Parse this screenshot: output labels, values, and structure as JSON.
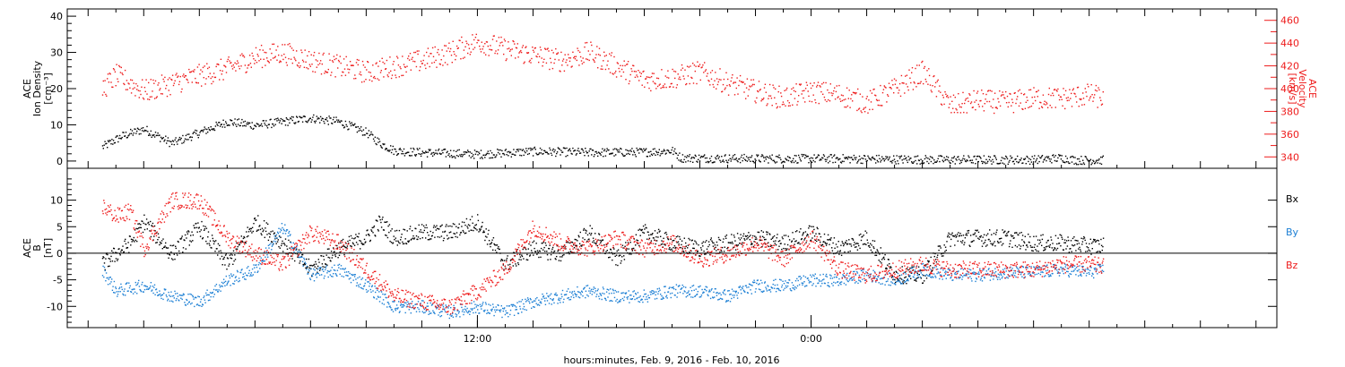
{
  "colors": {
    "black": "#000000",
    "red": "#ee1c1c",
    "blue": "#1c7fd4"
  },
  "chart_data": [
    {
      "type": "scatter",
      "panel": "top",
      "ylabel_left": [
        "ACE",
        "Ion Density",
        "[cm⁻³]"
      ],
      "ylabel_right": [
        "ACE",
        "Velocity",
        "[km/s]"
      ],
      "ylim_left": [
        -2,
        42
      ],
      "ylim_right": [
        330,
        470
      ],
      "yticks_left": [
        "0",
        "10",
        "20",
        "30",
        "40"
      ],
      "yticks_right": [
        "340",
        "360",
        "380",
        "400",
        "420",
        "440",
        "460"
      ],
      "series": [
        {
          "axis": "left",
          "color": "#000000",
          "keypoints": [
            [
              -13.5,
              4
            ],
            [
              -12.8,
              7
            ],
            [
              -12,
              9
            ],
            [
              -11,
              5
            ],
            [
              -10,
              8
            ],
            [
              -9,
              11
            ],
            [
              -8,
              10
            ],
            [
              -7,
              11
            ],
            [
              -6,
              12
            ],
            [
              -5,
              11
            ],
            [
              -4,
              8
            ],
            [
              -3.5,
              5
            ],
            [
              -3,
              3
            ],
            [
              -2,
              2.5
            ],
            [
              0,
              2
            ],
            [
              2,
              2.8
            ],
            [
              4,
              2.5
            ],
            [
              6,
              2.6
            ],
            [
              7,
              3
            ],
            [
              7.3,
              1
            ],
            [
              10,
              0.8
            ],
            [
              13,
              0.8
            ],
            [
              15,
              0.6
            ],
            [
              17,
              0.5
            ],
            [
              20,
              0.5
            ],
            [
              21,
              1
            ],
            [
              21.5,
              0.4
            ],
            [
              22.5,
              0.4
            ]
          ]
        },
        {
          "axis": "right",
          "color": "#ee1c1c",
          "keypoints": [
            [
              -13.5,
              400
            ],
            [
              -13,
              412
            ],
            [
              -12,
              398
            ],
            [
              -11,
              405
            ],
            [
              -10,
              412
            ],
            [
              -9,
              418
            ],
            [
              -8,
              428
            ],
            [
              -7,
              432
            ],
            [
              -6,
              425
            ],
            [
              -5,
              420
            ],
            [
              -4,
              415
            ],
            [
              -3,
              420
            ],
            [
              -2,
              425
            ],
            [
              -1,
              432
            ],
            [
              0,
              442
            ],
            [
              1,
              435
            ],
            [
              2,
              430
            ],
            [
              3,
              425
            ],
            [
              4,
              432
            ],
            [
              5,
              420
            ],
            [
              6,
              408
            ],
            [
              7,
              410
            ],
            [
              8,
              415
            ],
            [
              9,
              405
            ],
            [
              10,
              398
            ],
            [
              11,
              392
            ],
            [
              12,
              398
            ],
            [
              13,
              395
            ],
            [
              14,
              388
            ],
            [
              15,
              400
            ],
            [
              16,
              415
            ],
            [
              17,
              385
            ],
            [
              18,
              390
            ],
            [
              19,
              388
            ],
            [
              20,
              392
            ],
            [
              21,
              392
            ],
            [
              22,
              395
            ],
            [
              22.5,
              392
            ]
          ]
        }
      ]
    },
    {
      "type": "scatter",
      "panel": "bottom",
      "ylabel_left": [
        "ACE",
        "B",
        "[nT]"
      ],
      "ylim": [
        -14,
        16
      ],
      "yticks": [
        "-10",
        "-5",
        "0",
        "5",
        "10"
      ],
      "legend": [
        {
          "name": "Bx",
          "color": "#000000"
        },
        {
          "name": "By",
          "color": "#1c7fd4"
        },
        {
          "name": "Bz",
          "color": "#ee1c1c"
        }
      ],
      "series": [
        {
          "name": "Bx",
          "color": "#000000",
          "keypoints": [
            [
              -13.5,
              -2
            ],
            [
              -12.5,
              2
            ],
            [
              -12,
              6
            ],
            [
              -11,
              0
            ],
            [
              -10,
              5
            ],
            [
              -9,
              -2
            ],
            [
              -8,
              6
            ],
            [
              -7,
              2
            ],
            [
              -6,
              -3
            ],
            [
              -5,
              1
            ],
            [
              -4,
              3
            ],
            [
              -3.5,
              6
            ],
            [
              -3,
              3
            ],
            [
              -2,
              4
            ],
            [
              -1,
              4
            ],
            [
              0,
              6
            ],
            [
              1,
              -2
            ],
            [
              2,
              1
            ],
            [
              3,
              0
            ],
            [
              4,
              4
            ],
            [
              5,
              -1
            ],
            [
              6,
              4
            ],
            [
              7,
              2
            ],
            [
              8,
              1
            ],
            [
              9,
              2
            ],
            [
              10,
              3
            ],
            [
              11,
              2
            ],
            [
              12,
              4
            ],
            [
              13,
              1
            ],
            [
              14,
              3
            ],
            [
              15,
              -4
            ],
            [
              16,
              -4
            ],
            [
              17,
              3
            ],
            [
              18,
              3
            ],
            [
              19,
              3
            ],
            [
              20,
              2
            ],
            [
              21,
              2
            ],
            [
              22,
              1.5
            ],
            [
              22.5,
              1.5
            ]
          ]
        },
        {
          "name": "By",
          "color": "#1c7fd4",
          "keypoints": [
            [
              -13.5,
              -3
            ],
            [
              -13,
              -7
            ],
            [
              -12,
              -6
            ],
            [
              -11,
              -8
            ],
            [
              -10,
              -9
            ],
            [
              -9,
              -5
            ],
            [
              -8,
              -3
            ],
            [
              -7,
              5
            ],
            [
              -6,
              -4
            ],
            [
              -5,
              -3
            ],
            [
              -4,
              -6
            ],
            [
              -3,
              -10
            ],
            [
              -2,
              -10
            ],
            [
              -1,
              -11
            ],
            [
              0,
              -10
            ],
            [
              1,
              -11
            ],
            [
              2,
              -9
            ],
            [
              3,
              -8
            ],
            [
              4,
              -7
            ],
            [
              5,
              -8
            ],
            [
              6,
              -8
            ],
            [
              7,
              -7
            ],
            [
              8,
              -7
            ],
            [
              9,
              -8
            ],
            [
              10,
              -6
            ],
            [
              11,
              -6
            ],
            [
              12,
              -5
            ],
            [
              13,
              -5
            ],
            [
              14,
              -4
            ],
            [
              15,
              -5
            ],
            [
              16,
              -3
            ],
            [
              17,
              -4
            ],
            [
              18,
              -4
            ],
            [
              19,
              -3.5
            ],
            [
              20,
              -3.5
            ],
            [
              21,
              -3
            ],
            [
              22,
              -3.5
            ],
            [
              22.5,
              -3
            ]
          ]
        },
        {
          "name": "Bz",
          "color": "#ee1c1c",
          "keypoints": [
            [
              -13.5,
              9
            ],
            [
              -13,
              7
            ],
            [
              -12.5,
              8
            ],
            [
              -12,
              1
            ],
            [
              -11,
              10
            ],
            [
              -10,
              10
            ],
            [
              -9,
              3
            ],
            [
              -8,
              0
            ],
            [
              -7,
              -2
            ],
            [
              -6,
              4
            ],
            [
              -5,
              2
            ],
            [
              -4,
              -3
            ],
            [
              -3,
              -8
            ],
            [
              -2,
              -9
            ],
            [
              -1,
              -10
            ],
            [
              0,
              -7
            ],
            [
              1,
              -3
            ],
            [
              2,
              5
            ],
            [
              3,
              2
            ],
            [
              4,
              1
            ],
            [
              5,
              3
            ],
            [
              6,
              1
            ],
            [
              7,
              2
            ],
            [
              8,
              -1
            ],
            [
              9,
              0
            ],
            [
              10,
              2
            ],
            [
              11,
              -1
            ],
            [
              12,
              3
            ],
            [
              13,
              -3
            ],
            [
              14,
              -4
            ],
            [
              15,
              -3
            ],
            [
              16,
              -2
            ],
            [
              17,
              -3
            ],
            [
              18,
              -3
            ],
            [
              19,
              -3
            ],
            [
              20,
              -3
            ],
            [
              21,
              -2
            ],
            [
              22,
              -2
            ],
            [
              22.5,
              -2.5
            ]
          ]
        }
      ]
    }
  ],
  "time_axis": {
    "xlim_hours": [
      -14.75,
      28.75
    ],
    "major_ticks": [
      {
        "hour": 0,
        "label": "12:00"
      },
      {
        "hour": 12,
        "label": "0:00"
      }
    ],
    "xlabel": "hours:minutes, Feb.  9, 2016 - Feb. 10, 2016"
  }
}
